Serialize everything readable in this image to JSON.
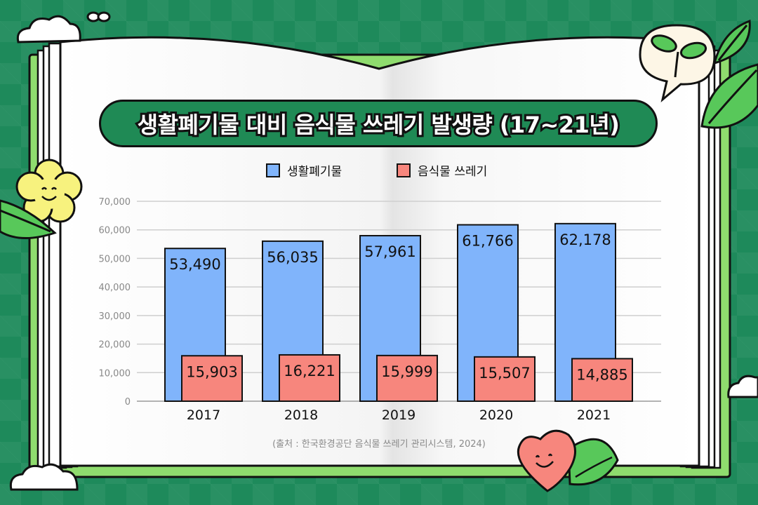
{
  "title": "생활폐기물 대비 음식물 쓰레기 발생량 (17~21년)",
  "source": "(출처 : 한국환경공단 음식물 쓰레기 관리시스템, 2024)",
  "colors": {
    "background": "#1e8a5b",
    "title_pill": "#1f8a55",
    "household_bar": "#80b4fb",
    "food_bar": "#f7867d",
    "book_edge": "#8fdc6e"
  },
  "chart_data": {
    "type": "bar",
    "categories": [
      "2017",
      "2018",
      "2019",
      "2020",
      "2021"
    ],
    "series": [
      {
        "name": "생활폐기물",
        "values": [
          53490,
          56035,
          57961,
          61766,
          62178
        ],
        "labels": [
          "53,490",
          "56,035",
          "57,961",
          "61,766",
          "62,178"
        ]
      },
      {
        "name": "음식물 쓰레기",
        "values": [
          15903,
          16221,
          15999,
          15507,
          14885
        ],
        "labels": [
          "15,903",
          "16,221",
          "15,999",
          "15,507",
          "14,885"
        ]
      }
    ],
    "ylim": [
      0,
      70000
    ],
    "yticks": [
      0,
      10000,
      20000,
      30000,
      40000,
      50000,
      60000,
      70000
    ],
    "ytick_labels": [
      "0",
      "10,000",
      "20,000",
      "30,000",
      "40,000",
      "50,000",
      "60,000",
      "70,000"
    ],
    "grid": true,
    "legend_position": "top-center",
    "layout": "overlapping-offset"
  }
}
